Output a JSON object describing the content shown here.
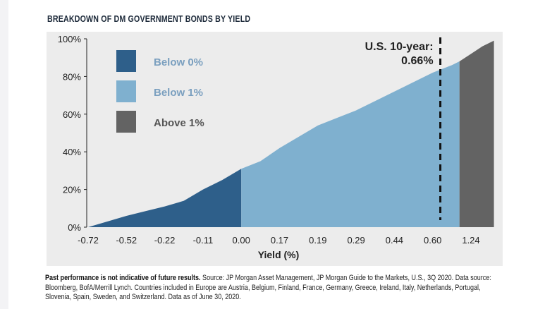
{
  "chart_data": {
    "type": "area",
    "title": "BREAKDOWN OF DM GOVERNMENT BONDS BY YIELD",
    "xlabel": "Yield (%)",
    "ylabel": "",
    "categories": [
      "-0.72",
      "-0.52",
      "-0.22",
      "-0.11",
      "0.00",
      "0.17",
      "0.19",
      "0.29",
      "0.44",
      "0.60",
      "1.24"
    ],
    "yticks": [
      "0%",
      "20%",
      "40%",
      "60%",
      "80%",
      "100%"
    ],
    "ylim": [
      0,
      100
    ],
    "curve_index": [
      0,
      0.5,
      1,
      1.5,
      2,
      2.5,
      3,
      3.5,
      4,
      4.5,
      5,
      5.5,
      6,
      6.5,
      7,
      7.5,
      8,
      8.5,
      9,
      9.5,
      9.7,
      10,
      10.3,
      10.6
    ],
    "curve_values": [
      0,
      3,
      6,
      8.5,
      11,
      14,
      20,
      25,
      31,
      35,
      42,
      48,
      54,
      58,
      62,
      67,
      72,
      77,
      82,
      86,
      88,
      92,
      96,
      99
    ],
    "series": [
      {
        "name": "Below 0%",
        "range_index": [
          0,
          4
        ],
        "color": "#2e5f8a"
      },
      {
        "name": "Below 1%",
        "range_index": [
          4,
          9.7
        ],
        "color": "#7fb0cf"
      },
      {
        "name": "Above 1%",
        "range_index": [
          9.7,
          10.6
        ],
        "color": "#636363"
      }
    ],
    "annotation": {
      "line1": "U.S. 10-year:",
      "line2": "0.66%",
      "index": 9.2
    },
    "legend_placement": "top-left",
    "grid": false
  },
  "footnote": {
    "bold": "Past performance is not indicative of future results.",
    "text": " Source: JP Morgan Asset Management, JP Morgan Guide to the Markets, U.S., 3Q 2020. Data source: Bloomberg, BofA/Merrill Lynch. Countries included in Europe are Austria, Belgium, Finland, France, Germany, Greece, Ireland, Italy, Netherlands, Portugal, Slovenia, Spain, Sweden, and Switzerland. Data as of June 30, 2020."
  }
}
